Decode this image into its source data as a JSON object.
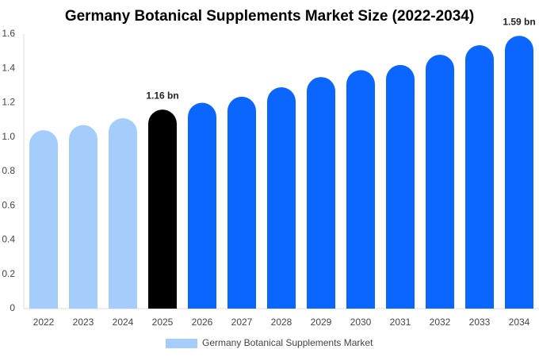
{
  "chart_data": {
    "type": "bar",
    "title": "Germany Botanical Supplements Market Size (2022-2034)",
    "categories": [
      "2022",
      "2023",
      "2024",
      "2025",
      "2026",
      "2027",
      "2028",
      "2029",
      "2030",
      "2031",
      "2032",
      "2033",
      "2034"
    ],
    "series": [
      {
        "name": "Germany Botanical Supplements Market",
        "color": "#a4cdfc",
        "colors": [
          "#a4cdfc",
          "#a4cdfc",
          "#a4cdfc",
          "#000000",
          "#0a66ff",
          "#0a66ff",
          "#0a66ff",
          "#0a66ff",
          "#0a66ff",
          "#0a66ff",
          "#0a66ff",
          "#0a66ff",
          "#0a66ff"
        ],
        "values": [
          1.04,
          1.07,
          1.11,
          1.16,
          1.2,
          1.235,
          1.29,
          1.35,
          1.39,
          1.42,
          1.48,
          1.535,
          1.59
        ],
        "value_labels": [
          null,
          null,
          null,
          "1.16 bn",
          null,
          null,
          null,
          null,
          null,
          null,
          null,
          null,
          "1.59 bn"
        ]
      }
    ],
    "ylim": [
      0,
      1.6
    ],
    "yticks": [
      0,
      0.2,
      0.4,
      0.6,
      0.8,
      {
        "value": 1,
        "label": "1.0"
      },
      1.2,
      1.4,
      1.6
    ],
    "grid": false,
    "legend": "bottom"
  }
}
